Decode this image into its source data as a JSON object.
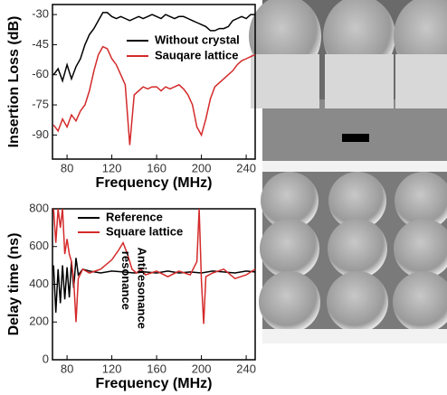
{
  "chart_data": [
    {
      "type": "line",
      "ylabel": "Insertion Loss (dB)",
      "xlabel": "Frequency (MHz)",
      "xlim": [
        67,
        248
      ],
      "xticks": [
        80,
        120,
        160,
        200,
        240
      ],
      "ylim": [
        -102,
        -25
      ],
      "yticks": [
        -30,
        -45,
        -60,
        -75,
        -90
      ],
      "series": [
        {
          "name": "Without crystal",
          "color": "#000000",
          "x": [
            68,
            72,
            76,
            80,
            84,
            88,
            92,
            96,
            100,
            104,
            108,
            112,
            116,
            120,
            124,
            128,
            132,
            136,
            140,
            144,
            148,
            152,
            156,
            160,
            164,
            168,
            172,
            176,
            180,
            184,
            188,
            192,
            196,
            200,
            204,
            208,
            212,
            216,
            220,
            224,
            228,
            232,
            236,
            240,
            244,
            248
          ],
          "values": [
            -60,
            -57,
            -63,
            -55,
            -62,
            -56,
            -52,
            -45,
            -40,
            -37,
            -33,
            -29,
            -29,
            -31,
            -32,
            -31,
            -32,
            -33,
            -32,
            -31,
            -32,
            -31,
            -30,
            -31,
            -32,
            -30,
            -31,
            -32,
            -31,
            -31,
            -32,
            -33,
            -34,
            -35,
            -36,
            -38,
            -38,
            -37,
            -37,
            -36,
            -33,
            -32,
            -31,
            -32,
            -30,
            -30
          ]
        },
        {
          "name": "Sauqare lattice",
          "color": "#d42a2a",
          "x": [
            68,
            72,
            76,
            80,
            84,
            88,
            92,
            96,
            100,
            104,
            108,
            112,
            116,
            120,
            124,
            128,
            132,
            136,
            140,
            144,
            148,
            152,
            156,
            160,
            164,
            168,
            172,
            176,
            180,
            184,
            188,
            192,
            196,
            200,
            204,
            208,
            212,
            216,
            220,
            224,
            228,
            232,
            236,
            240,
            244,
            248
          ],
          "values": [
            -85,
            -88,
            -82,
            -86,
            -80,
            -83,
            -78,
            -75,
            -68,
            -58,
            -50,
            -46,
            -47,
            -52,
            -55,
            -60,
            -65,
            -95,
            -70,
            -68,
            -66,
            -67,
            -66,
            -66,
            -68,
            -66,
            -67,
            -66,
            -65,
            -67,
            -70,
            -75,
            -86,
            -90,
            -82,
            -72,
            -66,
            -64,
            -62,
            -60,
            -58,
            -55,
            -53,
            -52,
            -51,
            -50
          ]
        }
      ]
    },
    {
      "type": "line",
      "ylabel": "Delay time (ns)",
      "xlabel": "Frequency (MHz)",
      "xlim": [
        67,
        248
      ],
      "xticks": [
        80,
        120,
        160,
        200,
        240
      ],
      "ylim": [
        0,
        800
      ],
      "yticks": [
        0,
        200,
        400,
        600,
        800
      ],
      "annotations": [
        {
          "text": "resonance",
          "x": 132,
          "y": 420
        },
        {
          "text": "Antiresonance",
          "x": 146,
          "y": 380
        }
      ],
      "series": [
        {
          "name": "Reference",
          "color": "#000000",
          "x": [
            68,
            70,
            72,
            74,
            76,
            78,
            80,
            82,
            84,
            86,
            88,
            90,
            94,
            100,
            110,
            120,
            130,
            140,
            150,
            160,
            170,
            180,
            190,
            200,
            210,
            220,
            230,
            240,
            248
          ],
          "values": [
            500,
            250,
            480,
            300,
            500,
            320,
            490,
            330,
            520,
            380,
            540,
            450,
            480,
            470,
            460,
            470,
            465,
            460,
            465,
            460,
            470,
            460,
            465,
            460,
            470,
            465,
            460,
            470,
            465
          ]
        },
        {
          "name": "Square lattice",
          "color": "#d42a2a",
          "x": [
            68,
            70,
            72,
            74,
            76,
            78,
            80,
            82,
            84,
            86,
            88,
            90,
            94,
            100,
            110,
            120,
            126,
            130,
            134,
            138,
            142,
            146,
            150,
            160,
            170,
            180,
            190,
            196,
            198,
            200,
            202,
            204,
            210,
            220,
            230,
            240,
            248
          ],
          "values": [
            800,
            620,
            800,
            700,
            800,
            560,
            640,
            560,
            520,
            420,
            200,
            430,
            480,
            460,
            480,
            530,
            580,
            620,
            560,
            480,
            460,
            480,
            450,
            470,
            440,
            470,
            450,
            520,
            800,
            420,
            190,
            440,
            460,
            480,
            430,
            450,
            480
          ]
        }
      ]
    }
  ]
}
